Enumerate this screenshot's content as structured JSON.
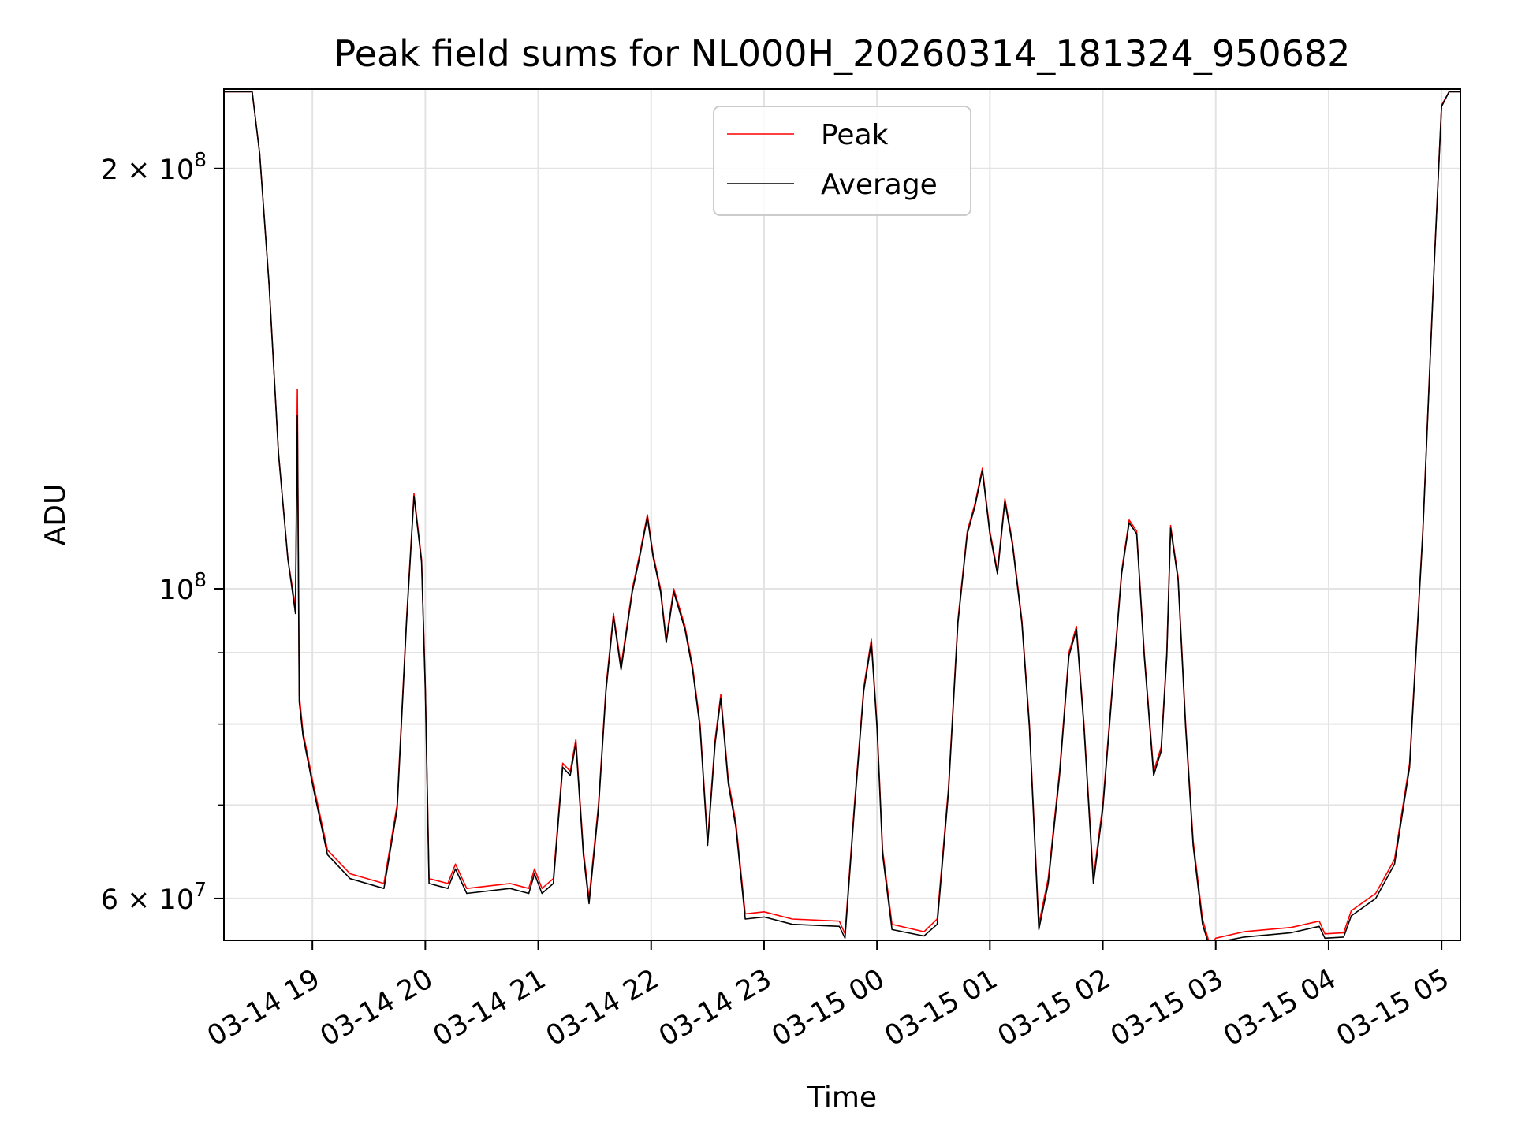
{
  "chart_data": {
    "type": "line",
    "title": "Peak field sums for NL000H_20260314_181324_950682",
    "xlabel": "Time",
    "ylabel": "ADU",
    "yscale": "log",
    "ylim": [
      56000000,
      228000000
    ],
    "xlim": [
      "2026-03-14 18:13",
      "2026-03-15 05:10"
    ],
    "grid": true,
    "legend_position": "top-center",
    "x_ticks": [
      {
        "at": "2026-03-14 19:00",
        "label": "03-14 19"
      },
      {
        "at": "2026-03-14 20:00",
        "label": "03-14 20"
      },
      {
        "at": "2026-03-14 21:00",
        "label": "03-14 21"
      },
      {
        "at": "2026-03-14 22:00",
        "label": "03-14 22"
      },
      {
        "at": "2026-03-14 23:00",
        "label": "03-14 23"
      },
      {
        "at": "2026-03-15 00:00",
        "label": "03-15 00"
      },
      {
        "at": "2026-03-15 01:00",
        "label": "03-15 01"
      },
      {
        "at": "2026-03-15 02:00",
        "label": "03-15 02"
      },
      {
        "at": "2026-03-15 03:00",
        "label": "03-15 03"
      },
      {
        "at": "2026-03-15 04:00",
        "label": "03-15 04"
      },
      {
        "at": "2026-03-15 05:00",
        "label": "03-15 05"
      }
    ],
    "y_major_ticks": [
      {
        "value": 200000000,
        "base": "2 × 10",
        "exp": "8"
      },
      {
        "value": 100000000,
        "base": "10",
        "exp": "8"
      },
      {
        "value": 60000000,
        "base": "6 × 10",
        "exp": "7"
      }
    ],
    "y_minor_ticks": [
      70000000,
      80000000,
      90000000
    ],
    "series": [
      {
        "name": "Peak",
        "color": "#ff0000",
        "points": [
          [
            "2026-03-14 18:13",
            227000000
          ],
          [
            "2026-03-14 18:28",
            227000000
          ],
          [
            "2026-03-14 18:32",
            205000000
          ],
          [
            "2026-03-14 18:37",
            165000000
          ],
          [
            "2026-03-14 18:42",
            125000000
          ],
          [
            "2026-03-14 18:47",
            105000000
          ],
          [
            "2026-03-14 18:51",
            97000000
          ],
          [
            "2026-03-14 18:52",
            139000000
          ],
          [
            "2026-03-14 18:53",
            84000000
          ],
          [
            "2026-03-14 18:55",
            79000000
          ],
          [
            "2026-03-14 19:00",
            73000000
          ],
          [
            "2026-03-14 19:08",
            65000000
          ],
          [
            "2026-03-14 19:20",
            62500000
          ],
          [
            "2026-03-14 19:38",
            61500000
          ],
          [
            "2026-03-14 19:45",
            70000000
          ],
          [
            "2026-03-14 19:50",
            95000000
          ],
          [
            "2026-03-14 19:54",
            117000000
          ],
          [
            "2026-03-14 19:58",
            105000000
          ],
          [
            "2026-03-14 20:00",
            85000000
          ],
          [
            "2026-03-14 20:02",
            62000000
          ],
          [
            "2026-03-14 20:12",
            61500000
          ],
          [
            "2026-03-14 20:16",
            63500000
          ],
          [
            "2026-03-14 20:22",
            61000000
          ],
          [
            "2026-03-14 20:45",
            61500000
          ],
          [
            "2026-03-14 20:55",
            61000000
          ],
          [
            "2026-03-14 20:58",
            63000000
          ],
          [
            "2026-03-14 21:02",
            61000000
          ],
          [
            "2026-03-14 21:08",
            62000000
          ],
          [
            "2026-03-14 21:13",
            75000000
          ],
          [
            "2026-03-14 21:17",
            74000000
          ],
          [
            "2026-03-14 21:20",
            78000000
          ],
          [
            "2026-03-14 21:24",
            65000000
          ],
          [
            "2026-03-14 21:27",
            60000000
          ],
          [
            "2026-03-14 21:32",
            70000000
          ],
          [
            "2026-03-14 21:36",
            85000000
          ],
          [
            "2026-03-14 21:40",
            96000000
          ],
          [
            "2026-03-14 21:44",
            88000000
          ],
          [
            "2026-03-14 21:50",
            100000000
          ],
          [
            "2026-03-14 21:54",
            106000000
          ],
          [
            "2026-03-14 21:58",
            113000000
          ],
          [
            "2026-03-14 22:01",
            106000000
          ],
          [
            "2026-03-14 22:05",
            100000000
          ],
          [
            "2026-03-14 22:08",
            92000000
          ],
          [
            "2026-03-14 22:12",
            100000000
          ],
          [
            "2026-03-14 22:18",
            94000000
          ],
          [
            "2026-03-14 22:22",
            88000000
          ],
          [
            "2026-03-14 22:26",
            80000000
          ],
          [
            "2026-03-14 22:30",
            66000000
          ],
          [
            "2026-03-14 22:34",
            78000000
          ],
          [
            "2026-03-14 22:37",
            84000000
          ],
          [
            "2026-03-14 22:41",
            73000000
          ],
          [
            "2026-03-14 22:45",
            68000000
          ],
          [
            "2026-03-14 22:50",
            58500000
          ],
          [
            "2026-03-14 23:00",
            58700000
          ],
          [
            "2026-03-14 23:15",
            58000000
          ],
          [
            "2026-03-14 23:40",
            57800000
          ],
          [
            "2026-03-14 23:43",
            56600000
          ],
          [
            "2026-03-14 23:48",
            70000000
          ],
          [
            "2026-03-14 23:53",
            85000000
          ],
          [
            "2026-03-14 23:57",
            92000000
          ],
          [
            "2026-03-15 00:00",
            80000000
          ],
          [
            "2026-03-15 00:03",
            65000000
          ],
          [
            "2026-03-15 00:08",
            57500000
          ],
          [
            "2026-03-15 00:25",
            56800000
          ],
          [
            "2026-03-15 00:32",
            58000000
          ],
          [
            "2026-03-15 00:38",
            72000000
          ],
          [
            "2026-03-15 00:43",
            95000000
          ],
          [
            "2026-03-15 00:48",
            110000000
          ],
          [
            "2026-03-15 00:52",
            115000000
          ],
          [
            "2026-03-15 00:56",
            122000000
          ],
          [
            "2026-03-15 01:00",
            110000000
          ],
          [
            "2026-03-15 01:04",
            103000000
          ],
          [
            "2026-03-15 01:08",
            116000000
          ],
          [
            "2026-03-15 01:12",
            108000000
          ],
          [
            "2026-03-15 01:17",
            95000000
          ],
          [
            "2026-03-15 01:21",
            80000000
          ],
          [
            "2026-03-15 01:26",
            57500000
          ],
          [
            "2026-03-15 01:31",
            62000000
          ],
          [
            "2026-03-15 01:37",
            74000000
          ],
          [
            "2026-03-15 01:42",
            90000000
          ],
          [
            "2026-03-15 01:46",
            94000000
          ],
          [
            "2026-03-15 01:50",
            80000000
          ],
          [
            "2026-03-15 01:55",
            62000000
          ],
          [
            "2026-03-15 02:00",
            70000000
          ],
          [
            "2026-03-15 02:05",
            85000000
          ],
          [
            "2026-03-15 02:10",
            103000000
          ],
          [
            "2026-03-15 02:14",
            112000000
          ],
          [
            "2026-03-15 02:18",
            110000000
          ],
          [
            "2026-03-15 02:22",
            90000000
          ],
          [
            "2026-03-15 02:27",
            74000000
          ],
          [
            "2026-03-15 02:31",
            77000000
          ],
          [
            "2026-03-15 02:34",
            90000000
          ],
          [
            "2026-03-15 02:36",
            111000000
          ],
          [
            "2026-03-15 02:40",
            102000000
          ],
          [
            "2026-03-15 02:44",
            80000000
          ],
          [
            "2026-03-15 02:48",
            66000000
          ],
          [
            "2026-03-15 02:53",
            58000000
          ],
          [
            "2026-03-15 02:57",
            55500000
          ],
          [
            "2026-03-15 03:00",
            56200000
          ],
          [
            "2026-03-15 03:15",
            56800000
          ],
          [
            "2026-03-15 03:40",
            57200000
          ],
          [
            "2026-03-15 03:55",
            57800000
          ],
          [
            "2026-03-15 03:58",
            56600000
          ],
          [
            "2026-03-15 04:08",
            56700000
          ],
          [
            "2026-03-15 04:12",
            58800000
          ],
          [
            "2026-03-15 04:25",
            60500000
          ],
          [
            "2026-03-15 04:35",
            64000000
          ],
          [
            "2026-03-15 04:43",
            75000000
          ],
          [
            "2026-03-15 04:50",
            110000000
          ],
          [
            "2026-03-15 04:56",
            170000000
          ],
          [
            "2026-03-15 05:00",
            222000000
          ],
          [
            "2026-03-15 05:04",
            227000000
          ],
          [
            "2026-03-15 05:10",
            227000000
          ]
        ]
      },
      {
        "name": "Average",
        "color": "#000000",
        "points": [
          [
            "2026-03-14 18:13",
            227000000
          ],
          [
            "2026-03-14 18:28",
            227000000
          ],
          [
            "2026-03-14 18:32",
            205000000
          ],
          [
            "2026-03-14 18:37",
            165000000
          ],
          [
            "2026-03-14 18:42",
            125000000
          ],
          [
            "2026-03-14 18:47",
            105000000
          ],
          [
            "2026-03-14 18:51",
            96000000
          ],
          [
            "2026-03-14 18:52",
            133000000
          ],
          [
            "2026-03-14 18:53",
            83000000
          ],
          [
            "2026-03-14 18:55",
            78500000
          ],
          [
            "2026-03-14 19:00",
            72500000
          ],
          [
            "2026-03-14 19:08",
            64500000
          ],
          [
            "2026-03-14 19:20",
            62000000
          ],
          [
            "2026-03-14 19:38",
            61000000
          ],
          [
            "2026-03-14 19:45",
            69500000
          ],
          [
            "2026-03-14 19:50",
            94500000
          ],
          [
            "2026-03-14 19:54",
            116500000
          ],
          [
            "2026-03-14 19:58",
            104500000
          ],
          [
            "2026-03-14 20:00",
            84500000
          ],
          [
            "2026-03-14 20:02",
            61500000
          ],
          [
            "2026-03-14 20:12",
            61000000
          ],
          [
            "2026-03-14 20:16",
            63000000
          ],
          [
            "2026-03-14 20:22",
            60500000
          ],
          [
            "2026-03-14 20:45",
            61000000
          ],
          [
            "2026-03-14 20:55",
            60500000
          ],
          [
            "2026-03-14 20:58",
            62500000
          ],
          [
            "2026-03-14 21:02",
            60500000
          ],
          [
            "2026-03-14 21:08",
            61500000
          ],
          [
            "2026-03-14 21:13",
            74500000
          ],
          [
            "2026-03-14 21:17",
            73500000
          ],
          [
            "2026-03-14 21:20",
            77500000
          ],
          [
            "2026-03-14 21:24",
            64500000
          ],
          [
            "2026-03-14 21:27",
            59500000
          ],
          [
            "2026-03-14 21:32",
            69500000
          ],
          [
            "2026-03-14 21:36",
            84500000
          ],
          [
            "2026-03-14 21:40",
            95500000
          ],
          [
            "2026-03-14 21:44",
            87500000
          ],
          [
            "2026-03-14 21:50",
            99500000
          ],
          [
            "2026-03-14 21:54",
            105500000
          ],
          [
            "2026-03-14 21:58",
            112500000
          ],
          [
            "2026-03-14 22:01",
            105500000
          ],
          [
            "2026-03-14 22:05",
            99500000
          ],
          [
            "2026-03-14 22:08",
            91500000
          ],
          [
            "2026-03-14 22:12",
            99500000
          ],
          [
            "2026-03-14 22:18",
            93500000
          ],
          [
            "2026-03-14 22:22",
            87500000
          ],
          [
            "2026-03-14 22:26",
            79500000
          ],
          [
            "2026-03-14 22:30",
            65500000
          ],
          [
            "2026-03-14 22:34",
            77500000
          ],
          [
            "2026-03-14 22:37",
            83500000
          ],
          [
            "2026-03-14 22:41",
            72500000
          ],
          [
            "2026-03-14 22:45",
            67500000
          ],
          [
            "2026-03-14 22:50",
            58000000
          ],
          [
            "2026-03-14 23:00",
            58200000
          ],
          [
            "2026-03-14 23:15",
            57500000
          ],
          [
            "2026-03-14 23:40",
            57300000
          ],
          [
            "2026-03-14 23:43",
            56200000
          ],
          [
            "2026-03-14 23:48",
            69500000
          ],
          [
            "2026-03-14 23:53",
            84500000
          ],
          [
            "2026-03-14 23:57",
            91500000
          ],
          [
            "2026-03-15 00:00",
            79500000
          ],
          [
            "2026-03-15 00:03",
            64500000
          ],
          [
            "2026-03-15 00:08",
            57000000
          ],
          [
            "2026-03-15 00:25",
            56400000
          ],
          [
            "2026-03-15 00:32",
            57500000
          ],
          [
            "2026-03-15 00:38",
            71500000
          ],
          [
            "2026-03-15 00:43",
            94500000
          ],
          [
            "2026-03-15 00:48",
            109500000
          ],
          [
            "2026-03-15 00:52",
            114500000
          ],
          [
            "2026-03-15 00:56",
            121500000
          ],
          [
            "2026-03-15 01:00",
            109500000
          ],
          [
            "2026-03-15 01:04",
            102500000
          ],
          [
            "2026-03-15 01:08",
            115500000
          ],
          [
            "2026-03-15 01:12",
            107500000
          ],
          [
            "2026-03-15 01:17",
            94500000
          ],
          [
            "2026-03-15 01:21",
            79500000
          ],
          [
            "2026-03-15 01:26",
            57000000
          ],
          [
            "2026-03-15 01:31",
            61500000
          ],
          [
            "2026-03-15 01:37",
            73500000
          ],
          [
            "2026-03-15 01:42",
            89500000
          ],
          [
            "2026-03-15 01:46",
            93500000
          ],
          [
            "2026-03-15 01:50",
            79500000
          ],
          [
            "2026-03-15 01:55",
            61500000
          ],
          [
            "2026-03-15 02:00",
            69500000
          ],
          [
            "2026-03-15 02:05",
            84500000
          ],
          [
            "2026-03-15 02:10",
            102500000
          ],
          [
            "2026-03-15 02:14",
            111500000
          ],
          [
            "2026-03-15 02:18",
            109500000
          ],
          [
            "2026-03-15 02:22",
            89500000
          ],
          [
            "2026-03-15 02:27",
            73500000
          ],
          [
            "2026-03-15 02:31",
            76500000
          ],
          [
            "2026-03-15 02:34",
            89500000
          ],
          [
            "2026-03-15 02:36",
            110500000
          ],
          [
            "2026-03-15 02:40",
            101500000
          ],
          [
            "2026-03-15 02:44",
            79500000
          ],
          [
            "2026-03-15 02:48",
            65500000
          ],
          [
            "2026-03-15 02:53",
            57500000
          ],
          [
            "2026-03-15 02:57",
            55200000
          ],
          [
            "2026-03-15 03:00",
            55800000
          ],
          [
            "2026-03-15 03:15",
            56300000
          ],
          [
            "2026-03-15 03:40",
            56700000
          ],
          [
            "2026-03-15 03:55",
            57300000
          ],
          [
            "2026-03-15 03:58",
            56200000
          ],
          [
            "2026-03-15 04:08",
            56300000
          ],
          [
            "2026-03-15 04:12",
            58300000
          ],
          [
            "2026-03-15 04:25",
            60000000
          ],
          [
            "2026-03-15 04:35",
            63500000
          ],
          [
            "2026-03-15 04:43",
            74500000
          ],
          [
            "2026-03-15 04:50",
            109500000
          ],
          [
            "2026-03-15 04:56",
            169500000
          ],
          [
            "2026-03-15 05:00",
            221500000
          ],
          [
            "2026-03-15 05:04",
            227000000
          ],
          [
            "2026-03-15 05:10",
            227000000
          ]
        ]
      }
    ]
  }
}
